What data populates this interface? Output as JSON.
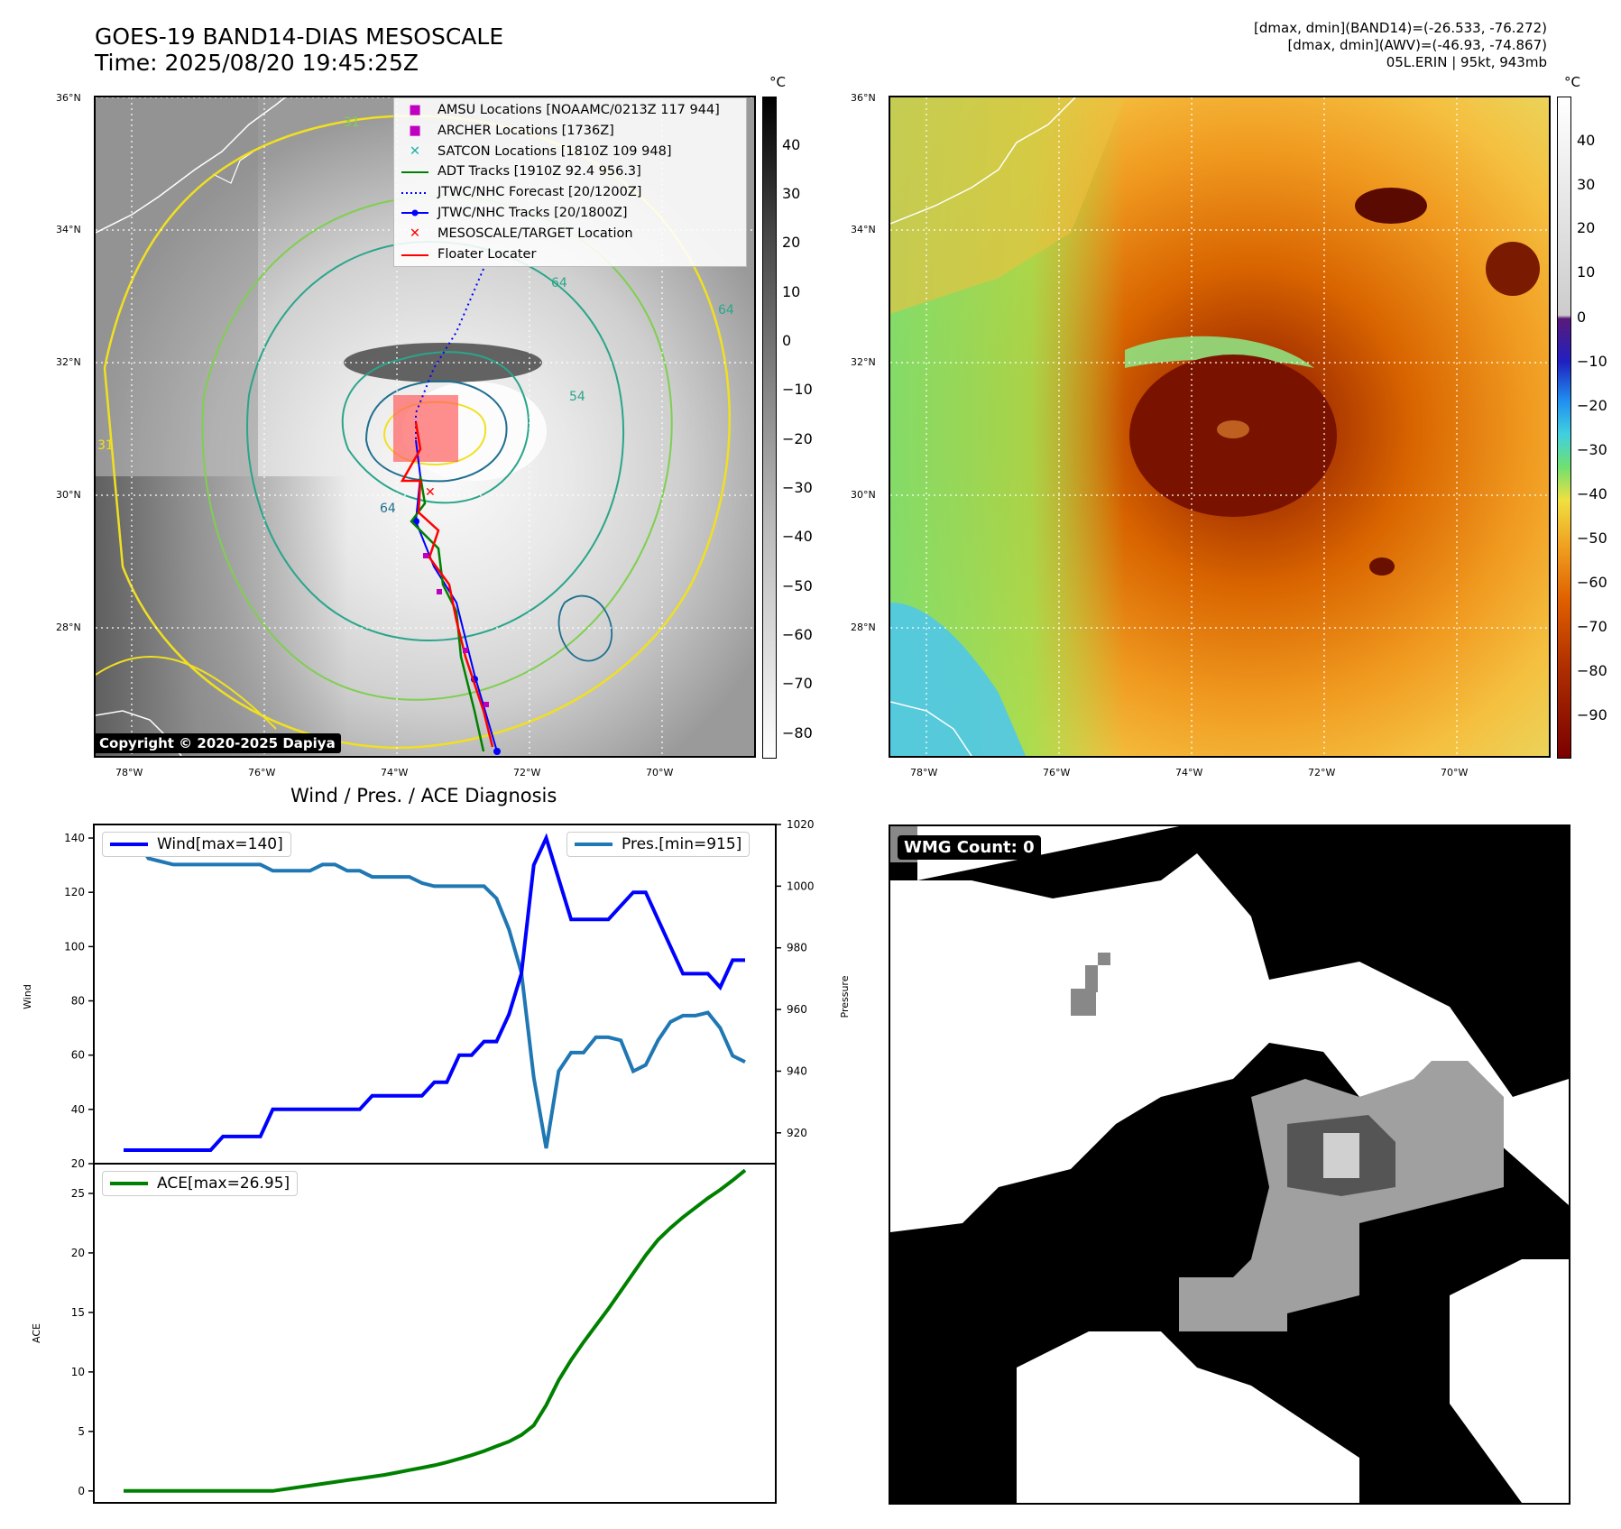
{
  "header": {
    "title_line1": "GOES-19 BAND14-DIAS MESOSCALE",
    "title_line2": "Time: 2025/08/20 19:45:25Z",
    "stats_line1": "[dmax, dmin](BAND14)=(-26.533, -76.272)",
    "stats_line2": "[dmax, dmin](AWV)=(-46.93, -74.867)",
    "stats_line3": "05L.ERIN | 95kt, 943mb"
  },
  "map": {
    "lat_labels": [
      "36°N",
      "34°N",
      "32°N",
      "30°N",
      "28°N"
    ],
    "lon_labels": [
      "78°W",
      "76°W",
      "74°W",
      "72°W",
      "70°W"
    ],
    "contour_labels": [
      "31",
      "64",
      "54",
      "64",
      "64",
      "31"
    ],
    "copyright": "Copyright © 2020-2025 Dapiya",
    "colors": {
      "yellow": "#f0e020",
      "lightgreen": "#7fcf50",
      "teal": "#2aa58a",
      "darkteal": "#1f6f8f"
    }
  },
  "legend": {
    "items": [
      {
        "label": "AMSU Locations [NOAAMC/0213Z 117 944]",
        "symbol": "square",
        "color": "#c000c0"
      },
      {
        "label": "ARCHER Locations [1736Z]",
        "symbol": "square",
        "color": "#c000c0"
      },
      {
        "label": "SATCON Locations [1810Z 109 948]",
        "symbol": "x",
        "color": "#20b2aa"
      },
      {
        "label": "ADT Tracks [1910Z 92.4 956.3]",
        "symbol": "line",
        "color": "#008000"
      },
      {
        "label": "JTWC/NHC Forecast [20/1200Z]",
        "symbol": "dotted",
        "color": "#0000ff"
      },
      {
        "label": "JTWC/NHC Tracks [20/1800Z]",
        "symbol": "line-dot",
        "color": "#0000ff"
      },
      {
        "label": "MESOSCALE/TARGET Location",
        "symbol": "bigx",
        "color": "#ff0000"
      },
      {
        "label": "Floater Locater",
        "symbol": "line",
        "color": "#ff0000"
      }
    ]
  },
  "colorbar_gray": {
    "unit": "°C",
    "ticks": [
      "40",
      "30",
      "20",
      "10",
      "0",
      "−10",
      "−20",
      "−30",
      "−40",
      "−50",
      "−60",
      "−70",
      "−80"
    ]
  },
  "colorbar_color": {
    "unit": "°C",
    "ticks": [
      "40",
      "30",
      "20",
      "10",
      "0",
      "−10",
      "−20",
      "−30",
      "−40",
      "−50",
      "−60",
      "−70",
      "−80",
      "−90"
    ]
  },
  "diagnosis": {
    "title": "Wind / Pres. / ACE Diagnosis",
    "wind_legend": "Wind[max=140]",
    "pres_legend": "Pres.[min=915]",
    "ace_legend": "ACE[max=26.95]",
    "wind_label": "Wind",
    "pres_label": "Pressure",
    "ace_label": "ACE"
  },
  "wmg": {
    "label": "WMG Count: 0"
  },
  "chart_data": [
    {
      "type": "line",
      "title": "Wind / Pres. / ACE Diagnosis",
      "ylabel": "Wind",
      "ylim": [
        20,
        145
      ],
      "yticks": [
        20,
        40,
        60,
        80,
        100,
        120,
        140
      ],
      "series": [
        {
          "name": "Wind[max=140]",
          "color": "#0000ff",
          "values": [
            25,
            25,
            25,
            25,
            25,
            25,
            25,
            25,
            30,
            30,
            30,
            30,
            40,
            40,
            40,
            40,
            40,
            40,
            40,
            40,
            45,
            45,
            45,
            45,
            45,
            50,
            50,
            60,
            60,
            65,
            65,
            75,
            90,
            130,
            140,
            125,
            110,
            110,
            110,
            110,
            115,
            120,
            120,
            110,
            100,
            90,
            90,
            90,
            85,
            95,
            95
          ]
        }
      ]
    },
    {
      "type": "line",
      "ylabel": "Pressure",
      "ylim": [
        910,
        1020
      ],
      "yticks": [
        920,
        940,
        960,
        980,
        1000,
        1020
      ],
      "series": [
        {
          "name": "Pres.[min=915]",
          "color": "#1f77b4",
          "values": [
            1015,
            1015,
            1009,
            1008,
            1007,
            1007,
            1007,
            1007,
            1007,
            1007,
            1007,
            1007,
            1005,
            1005,
            1005,
            1005,
            1007,
            1007,
            1005,
            1005,
            1003,
            1003,
            1003,
            1003,
            1001,
            1000,
            1000,
            1000,
            1000,
            1000,
            996,
            986,
            972,
            938,
            915,
            940,
            946,
            946,
            951,
            951,
            950,
            940,
            942,
            950,
            956,
            958,
            958,
            959,
            954,
            945,
            943
          ]
        }
      ]
    },
    {
      "type": "line",
      "ylabel": "ACE",
      "ylim": [
        -1,
        27.5
      ],
      "yticks": [
        0,
        5,
        10,
        15,
        20,
        25
      ],
      "series": [
        {
          "name": "ACE[max=26.95]",
          "color": "#008000",
          "values": [
            0,
            0,
            0,
            0,
            0,
            0,
            0,
            0,
            0,
            0,
            0,
            0,
            0,
            0.15,
            0.3,
            0.45,
            0.6,
            0.75,
            0.9,
            1.05,
            1.2,
            1.35,
            1.55,
            1.75,
            1.95,
            2.15,
            2.4,
            2.7,
            3.0,
            3.35,
            3.75,
            4.15,
            4.7,
            5.5,
            7.2,
            9.3,
            11.0,
            12.5,
            13.9,
            15.3,
            16.8,
            18.3,
            19.8,
            21.1,
            22.1,
            23.0,
            23.8,
            24.6,
            25.3,
            26.1,
            26.95
          ]
        }
      ]
    }
  ]
}
